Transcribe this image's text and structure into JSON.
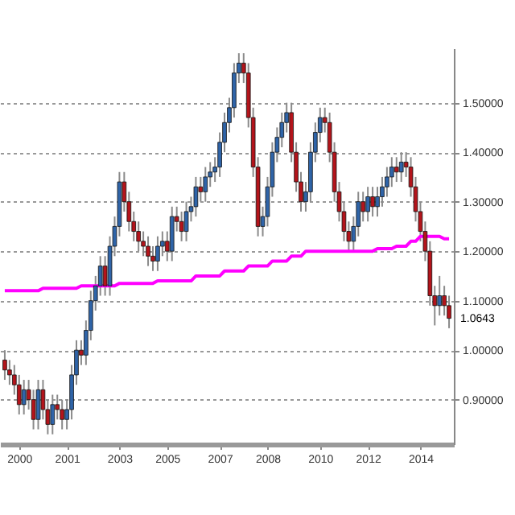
{
  "chart_data": {
    "type": "candlestick",
    "categories": [
      null,
      null,
      null,
      "2000",
      null,
      null,
      null,
      null,
      null,
      null,
      null,
      null,
      null,
      "2001",
      null,
      null,
      null,
      null,
      null,
      null,
      null,
      null,
      null,
      null,
      "2003",
      null,
      null,
      null,
      null,
      null,
      null,
      null,
      null,
      null,
      "2005",
      null,
      null,
      null,
      null,
      null,
      null,
      null,
      null,
      null,
      null,
      "2007",
      null,
      null,
      null,
      null,
      null,
      null,
      null,
      null,
      null,
      "2008",
      null,
      null,
      null,
      null,
      null,
      null,
      null,
      null,
      null,
      null,
      "2010",
      null,
      null,
      null,
      null,
      null,
      null,
      null,
      null,
      null,
      "2012",
      null,
      null,
      null,
      null,
      null,
      null,
      null,
      null,
      null,
      null,
      "2014",
      null,
      null,
      null,
      null,
      null,
      null
    ],
    "ohlc": [
      [
        0.98,
        1.0,
        0.94,
        0.96
      ],
      [
        0.96,
        0.98,
        0.93,
        0.95
      ],
      [
        0.95,
        0.97,
        0.91,
        0.93
      ],
      [
        0.93,
        0.95,
        0.87,
        0.89
      ],
      [
        0.89,
        0.94,
        0.87,
        0.92
      ],
      [
        0.92,
        0.94,
        0.88,
        0.9
      ],
      [
        0.9,
        0.92,
        0.84,
        0.86
      ],
      [
        0.86,
        0.94,
        0.84,
        0.92
      ],
      [
        0.92,
        0.94,
        0.86,
        0.88
      ],
      [
        0.88,
        0.9,
        0.83,
        0.85
      ],
      [
        0.85,
        0.91,
        0.83,
        0.89
      ],
      [
        0.89,
        0.91,
        0.86,
        0.88
      ],
      [
        0.88,
        0.9,
        0.84,
        0.86
      ],
      [
        0.86,
        0.9,
        0.84,
        0.88
      ],
      [
        0.88,
        0.97,
        0.86,
        0.95
      ],
      [
        0.95,
        1.02,
        0.93,
        1.0
      ],
      [
        1.0,
        1.02,
        0.97,
        0.99
      ],
      [
        0.99,
        1.06,
        0.97,
        1.04
      ],
      [
        1.04,
        1.12,
        1.02,
        1.1
      ],
      [
        1.1,
        1.15,
        1.08,
        1.13
      ],
      [
        1.13,
        1.19,
        1.11,
        1.17
      ],
      [
        1.17,
        1.19,
        1.11,
        1.13
      ],
      [
        1.13,
        1.23,
        1.11,
        1.21
      ],
      [
        1.21,
        1.27,
        1.19,
        1.25
      ],
      [
        1.25,
        1.36,
        1.23,
        1.34
      ],
      [
        1.34,
        1.36,
        1.28,
        1.3
      ],
      [
        1.3,
        1.32,
        1.24,
        1.26
      ],
      [
        1.26,
        1.28,
        1.22,
        1.24
      ],
      [
        1.24,
        1.26,
        1.2,
        1.22
      ],
      [
        1.22,
        1.24,
        1.19,
        1.21
      ],
      [
        1.21,
        1.23,
        1.17,
        1.19
      ],
      [
        1.19,
        1.21,
        1.16,
        1.18
      ],
      [
        1.18,
        1.23,
        1.16,
        1.21
      ],
      [
        1.21,
        1.24,
        1.19,
        1.22
      ],
      [
        1.22,
        1.24,
        1.18,
        1.2
      ],
      [
        1.2,
        1.29,
        1.18,
        1.27
      ],
      [
        1.27,
        1.29,
        1.24,
        1.26
      ],
      [
        1.26,
        1.28,
        1.22,
        1.24
      ],
      [
        1.24,
        1.3,
        1.22,
        1.28
      ],
      [
        1.28,
        1.31,
        1.26,
        1.29
      ],
      [
        1.29,
        1.35,
        1.27,
        1.33
      ],
      [
        1.33,
        1.35,
        1.3,
        1.32
      ],
      [
        1.32,
        1.37,
        1.3,
        1.35
      ],
      [
        1.35,
        1.38,
        1.33,
        1.36
      ],
      [
        1.36,
        1.39,
        1.34,
        1.37
      ],
      [
        1.37,
        1.44,
        1.35,
        1.42
      ],
      [
        1.42,
        1.48,
        1.4,
        1.46
      ],
      [
        1.46,
        1.51,
        1.44,
        1.49
      ],
      [
        1.49,
        1.58,
        1.47,
        1.56
      ],
      [
        1.56,
        1.6,
        1.54,
        1.58
      ],
      [
        1.58,
        1.6,
        1.54,
        1.56
      ],
      [
        1.56,
        1.58,
        1.45,
        1.47
      ],
      [
        1.47,
        1.49,
        1.35,
        1.37
      ],
      [
        1.37,
        1.39,
        1.23,
        1.25
      ],
      [
        1.25,
        1.29,
        1.23,
        1.27
      ],
      [
        1.27,
        1.35,
        1.25,
        1.33
      ],
      [
        1.33,
        1.42,
        1.31,
        1.4
      ],
      [
        1.4,
        1.45,
        1.38,
        1.43
      ],
      [
        1.43,
        1.48,
        1.41,
        1.46
      ],
      [
        1.46,
        1.5,
        1.44,
        1.48
      ],
      [
        1.48,
        1.5,
        1.38,
        1.4
      ],
      [
        1.4,
        1.42,
        1.32,
        1.34
      ],
      [
        1.34,
        1.36,
        1.28,
        1.3
      ],
      [
        1.3,
        1.34,
        1.28,
        1.32
      ],
      [
        1.32,
        1.42,
        1.3,
        1.4
      ],
      [
        1.4,
        1.46,
        1.38,
        1.44
      ],
      [
        1.44,
        1.49,
        1.42,
        1.47
      ],
      [
        1.47,
        1.49,
        1.44,
        1.46
      ],
      [
        1.46,
        1.48,
        1.38,
        1.4
      ],
      [
        1.4,
        1.42,
        1.3,
        1.32
      ],
      [
        1.32,
        1.34,
        1.26,
        1.28
      ],
      [
        1.28,
        1.3,
        1.22,
        1.24
      ],
      [
        1.24,
        1.26,
        1.2,
        1.22
      ],
      [
        1.22,
        1.27,
        1.2,
        1.25
      ],
      [
        1.25,
        1.32,
        1.23,
        1.3
      ],
      [
        1.3,
        1.32,
        1.26,
        1.28
      ],
      [
        1.28,
        1.33,
        1.26,
        1.31
      ],
      [
        1.31,
        1.33,
        1.27,
        1.29
      ],
      [
        1.29,
        1.33,
        1.27,
        1.31
      ],
      [
        1.31,
        1.35,
        1.29,
        1.33
      ],
      [
        1.33,
        1.37,
        1.31,
        1.35
      ],
      [
        1.35,
        1.39,
        1.33,
        1.37
      ],
      [
        1.37,
        1.39,
        1.34,
        1.36
      ],
      [
        1.36,
        1.4,
        1.34,
        1.38
      ],
      [
        1.38,
        1.4,
        1.35,
        1.37
      ],
      [
        1.37,
        1.39,
        1.31,
        1.33
      ],
      [
        1.33,
        1.35,
        1.26,
        1.28
      ],
      [
        1.28,
        1.3,
        1.22,
        1.24
      ],
      [
        1.24,
        1.26,
        1.18,
        1.2
      ],
      [
        1.2,
        1.22,
        1.09,
        1.11
      ],
      [
        1.11,
        1.13,
        1.05,
        1.09
      ],
      [
        1.09,
        1.15,
        1.07,
        1.11
      ],
      [
        1.11,
        1.13,
        1.07,
        1.09
      ],
      [
        1.09,
        1.11,
        1.0443,
        1.0643
      ]
    ],
    "series": [
      {
        "type": "line",
        "color": "#ff00ff",
        "values": [
          1.12,
          1.12,
          1.12,
          1.12,
          1.12,
          1.12,
          1.12,
          1.12,
          1.125,
          1.125,
          1.125,
          1.125,
          1.125,
          1.125,
          1.125,
          1.125,
          1.13,
          1.13,
          1.13,
          1.13,
          1.13,
          1.13,
          1.13,
          1.13,
          1.135,
          1.135,
          1.135,
          1.135,
          1.135,
          1.135,
          1.135,
          1.135,
          1.14,
          1.14,
          1.14,
          1.14,
          1.14,
          1.14,
          1.14,
          1.14,
          1.15,
          1.15,
          1.15,
          1.15,
          1.15,
          1.15,
          1.16,
          1.16,
          1.16,
          1.16,
          1.16,
          1.17,
          1.17,
          1.17,
          1.17,
          1.17,
          1.18,
          1.18,
          1.18,
          1.18,
          1.19,
          1.19,
          1.19,
          1.2,
          1.2,
          1.2,
          1.2,
          1.2,
          1.2,
          1.2,
          1.2,
          1.2,
          1.2,
          1.2,
          1.2,
          1.2,
          1.2,
          1.2,
          1.205,
          1.205,
          1.205,
          1.205,
          1.21,
          1.21,
          1.21,
          1.22,
          1.22,
          1.23,
          1.23,
          1.23,
          1.23,
          1.23,
          1.225,
          1.225
        ]
      }
    ],
    "ylim": [
      0.81,
      1.61
    ],
    "yticks": [
      {
        "value": 0.9,
        "label": "0.90000"
      },
      {
        "value": 1.0,
        "label": "1.00000"
      },
      {
        "value": 1.1,
        "label": "1.10000"
      },
      {
        "value": 1.2,
        "label": "1.20000"
      },
      {
        "value": 1.3,
        "label": "1.30000"
      },
      {
        "value": 1.4,
        "label": "1.40000"
      },
      {
        "value": 1.5,
        "label": "1.50000"
      }
    ],
    "annotations": [
      "1.0643"
    ],
    "grid": "y"
  }
}
